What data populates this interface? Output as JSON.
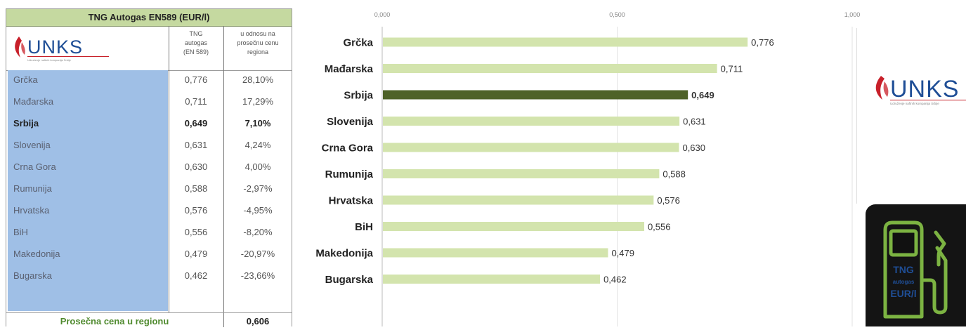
{
  "table": {
    "title": "TNG Autogas EN589 (EUR/l)",
    "logo_text": "UNKS",
    "logo_subtitle": "Udruženje naftnih kompanija Srbije",
    "col_price_header": [
      "TNG",
      "autogas",
      "(EN 589)"
    ],
    "col_diff_header": [
      "u odnosu na",
      "prosečnu cenu",
      "regiona"
    ],
    "rows": [
      {
        "country": "Grčka",
        "price": "0,776",
        "diff": "28,10%"
      },
      {
        "country": "Mađarska",
        "price": "0,711",
        "diff": "17,29%"
      },
      {
        "country": "Srbija",
        "price": "0,649",
        "diff": "7,10%"
      },
      {
        "country": "Slovenija",
        "price": "0,631",
        "diff": "4,24%"
      },
      {
        "country": "Crna Gora",
        "price": "0,630",
        "diff": "4,00%"
      },
      {
        "country": "Rumunija",
        "price": "0,588",
        "diff": "-2,97%"
      },
      {
        "country": "Hrvatska",
        "price": "0,576",
        "diff": "-4,95%"
      },
      {
        "country": "BiH",
        "price": "0,556",
        "diff": "-8,20%"
      },
      {
        "country": "Makedonija",
        "price": "0,479",
        "diff": "-20,97%"
      },
      {
        "country": "Bugarska",
        "price": "0,462",
        "diff": "-23,66%"
      }
    ],
    "footer_label": "Prosečna cena u regionu",
    "footer_value": "0,606"
  },
  "chart_data": {
    "type": "bar",
    "orientation": "horizontal",
    "categories": [
      "Grčka",
      "Mađarska",
      "Srbija",
      "Slovenija",
      "Crna Gora",
      "Rumunija",
      "Hrvatska",
      "BiH",
      "Makedonija",
      "Bugarska"
    ],
    "values": [
      0.776,
      0.711,
      0.649,
      0.631,
      0.63,
      0.588,
      0.576,
      0.556,
      0.479,
      0.462
    ],
    "value_labels": [
      "0,776",
      "0,711",
      "0,649",
      "0,631",
      "0,630",
      "0,588",
      "0,576",
      "0,556",
      "0,479",
      "0,462"
    ],
    "highlight": "Srbija",
    "xlim": [
      0,
      1
    ],
    "xticks": [
      0,
      0.5,
      1
    ],
    "xtick_labels": [
      "0,000",
      "0,500",
      "1,000"
    ],
    "grid": true,
    "colors": {
      "bar": "#d3e4ad",
      "bar_highlight": "#4e6228"
    }
  },
  "right_panel": {
    "logo_text": "UNKS",
    "logo_subtitle": "Udruženje naftnih kompanija Srbije",
    "pump_label": [
      "TNG",
      "autogas",
      "EUR/l"
    ]
  },
  "colors": {
    "title_bg": "#c5d9a0",
    "country_col_bg": "#9fbfe6",
    "footer_text": "#4f8a2e",
    "logo_red": "#c8202a",
    "logo_blue": "#1f4e96",
    "pump_green": "#7cb342"
  }
}
